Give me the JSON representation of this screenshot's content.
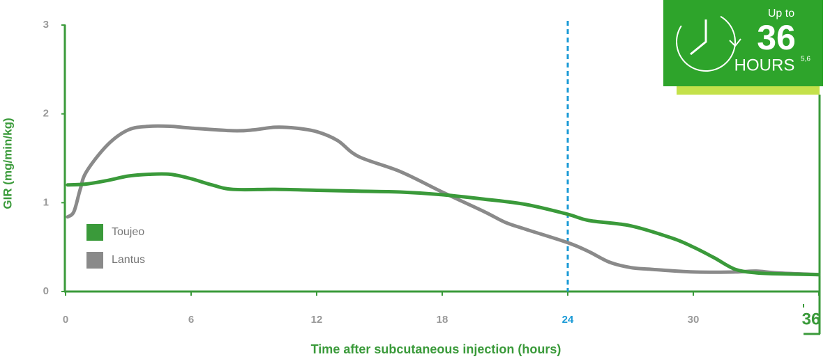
{
  "chart_data": {
    "type": "line",
    "x_label": "Time after subcutaneous injection (hours)",
    "y_label": "GIR (mg/min/kg)",
    "xlim": [
      0,
      36
    ],
    "ylim": [
      0,
      3
    ],
    "xticks": [
      0,
      6,
      12,
      18,
      24,
      30,
      36
    ],
    "yticks": [
      0,
      1,
      2,
      3
    ],
    "axis_color": "#3a9a3a",
    "reference_line": {
      "x": 24,
      "color": "#1a9ad6"
    },
    "badge": {
      "pre": "Up to",
      "number": "36",
      "unit": "HOURS",
      "superscript": "5,6"
    },
    "series": [
      {
        "name": "Toujeo",
        "color": "#3a9a3a",
        "x": [
          0.1,
          1,
          2,
          3,
          4,
          5,
          6,
          7,
          8,
          10,
          12,
          14,
          16,
          18,
          20,
          22,
          24,
          25,
          27,
          29,
          30,
          31,
          32,
          33,
          34,
          36
        ],
        "values": [
          1.2,
          1.21,
          1.25,
          1.3,
          1.32,
          1.32,
          1.27,
          1.2,
          1.15,
          1.15,
          1.14,
          1.13,
          1.12,
          1.09,
          1.04,
          0.98,
          0.87,
          0.8,
          0.74,
          0.6,
          0.5,
          0.38,
          0.25,
          0.21,
          0.2,
          0.19
        ]
      },
      {
        "name": "Lantus",
        "color": "#8a8a8a",
        "x": [
          0.1,
          0.4,
          0.7,
          1,
          2,
          3,
          4,
          5,
          6,
          8,
          9,
          10,
          11,
          12,
          13,
          14,
          16,
          18,
          20,
          21,
          22,
          24,
          25,
          26,
          27,
          28,
          30,
          32,
          33,
          34,
          36
        ],
        "values": [
          0.84,
          0.9,
          1.15,
          1.35,
          1.65,
          1.82,
          1.86,
          1.86,
          1.84,
          1.81,
          1.82,
          1.85,
          1.84,
          1.8,
          1.7,
          1.52,
          1.35,
          1.12,
          0.9,
          0.78,
          0.7,
          0.55,
          0.45,
          0.33,
          0.27,
          0.25,
          0.22,
          0.22,
          0.23,
          0.21,
          0.19
        ]
      }
    ]
  }
}
